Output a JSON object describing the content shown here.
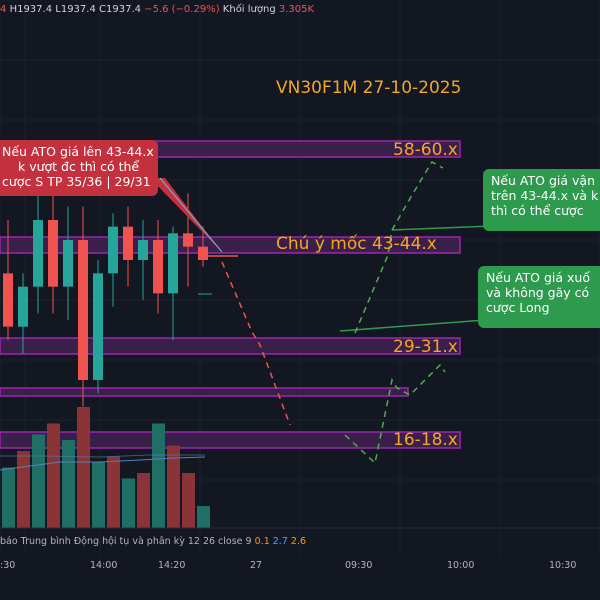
{
  "header": {
    "prefix": "4",
    "high": "H1937.4",
    "low": "L1937.4",
    "close": "C1937.4",
    "change": "−5.6 (−0.29%)",
    "volume_label": "Khối lượng",
    "volume_value": "3.305K"
  },
  "title": "VN30F1M 27-10-2025",
  "zones": {
    "z58": "58-60.x",
    "z43": "Chú ý mốc 43-44.x",
    "z29": "29-31.x",
    "z16": "16-18.x"
  },
  "notes": {
    "red": [
      "Nếu ATO giá lên 43-44.x",
      "k vượt đc thì có thể",
      "cược S TP 35/36 | 29/31"
    ],
    "green_top": [
      "Nếu ATO giá vận",
      "trên 43-44.x và k",
      "thì có thể cược"
    ],
    "green_bottom": [
      "Nếu ATO giá xuố",
      "và không gãy có",
      "cược Long"
    ]
  },
  "macd_label": {
    "text": "báo Trung bình Động hội tụ và phân kỳ 12 26 close 9",
    "v1": "0.1",
    "v2": "2.7",
    "v3": "2.6"
  },
  "x_axis": {
    "t1": ":30",
    "t2": "14:00",
    "t3": "14:20",
    "t4": "27",
    "t5": "09:30",
    "t6": "10:00",
    "t7": "10:30"
  },
  "colors": {
    "background": "#131722",
    "up": "#26a69a",
    "down": "#ef5350",
    "zone_border": "#9c27b0",
    "zone_fill": "#3a1f4a",
    "label": "#f5a623",
    "note_red": "#c2313d",
    "note_green": "#2e9a4e"
  },
  "chart_data": {
    "type": "candlestick",
    "title": "VN30F1M 27-10-2025",
    "price_zones": [
      "58-60.x",
      "43-44.x",
      "29-31.x",
      "16-18.x"
    ],
    "candles": [
      {
        "o": 40,
        "h": 48,
        "l": 30,
        "c": 32
      },
      {
        "o": 32,
        "h": 40,
        "l": 28,
        "c": 38
      },
      {
        "o": 38,
        "h": 52,
        "l": 34,
        "c": 48
      },
      {
        "o": 48,
        "h": 52,
        "l": 34,
        "c": 38
      },
      {
        "o": 38,
        "h": 50,
        "l": 33,
        "c": 45
      },
      {
        "o": 45,
        "h": 50,
        "l": 20,
        "c": 24
      },
      {
        "o": 24,
        "h": 42,
        "l": 22,
        "c": 40
      },
      {
        "o": 40,
        "h": 49,
        "l": 35,
        "c": 47
      },
      {
        "o": 47,
        "h": 50,
        "l": 38,
        "c": 42
      },
      {
        "o": 42,
        "h": 48,
        "l": 36,
        "c": 45
      },
      {
        "o": 45,
        "h": 48,
        "l": 34,
        "c": 37
      },
      {
        "o": 37,
        "h": 47,
        "l": 30,
        "c": 46
      },
      {
        "o": 46,
        "h": 52,
        "l": 38,
        "c": 44
      },
      {
        "o": 44,
        "h": 47,
        "l": 41,
        "c": 42
      }
    ],
    "volume": [
      {
        "v": 5.5,
        "up": true
      },
      {
        "v": 7,
        "up": false
      },
      {
        "v": 8.5,
        "up": true
      },
      {
        "v": 9.5,
        "up": false
      },
      {
        "v": 8,
        "up": true
      },
      {
        "v": 11,
        "up": false
      },
      {
        "v": 6,
        "up": true
      },
      {
        "v": 6.5,
        "up": false
      },
      {
        "v": 4.5,
        "up": true
      },
      {
        "v": 5,
        "up": false
      },
      {
        "v": 9.5,
        "up": true
      },
      {
        "v": 7.5,
        "up": false
      },
      {
        "v": 5,
        "up": false
      },
      {
        "v": 2,
        "up": true
      }
    ]
  }
}
